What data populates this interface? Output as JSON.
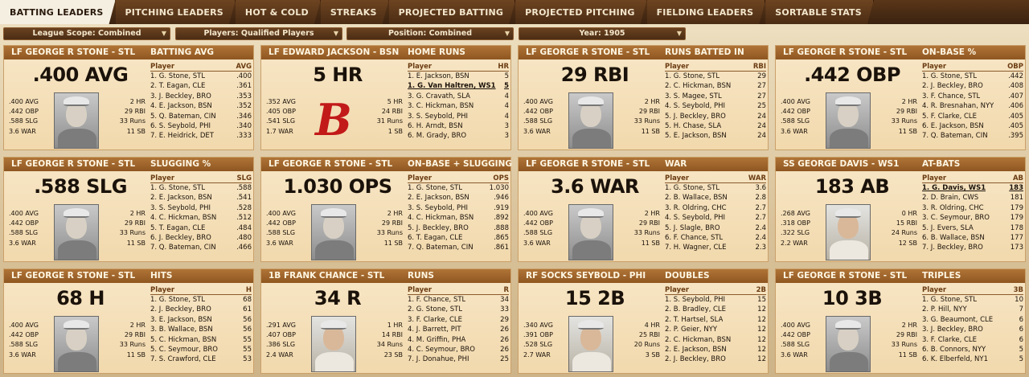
{
  "tabs": [
    {
      "label": "BATTING LEADERS",
      "active": true
    },
    {
      "label": "PITCHING LEADERS",
      "active": false
    },
    {
      "label": "HOT & COLD",
      "active": false
    },
    {
      "label": "STREAKS",
      "active": false
    },
    {
      "label": "PROJECTED BATTING",
      "active": false
    },
    {
      "label": "PROJECTED PITCHING",
      "active": false
    },
    {
      "label": "FIELDING LEADERS",
      "active": false
    },
    {
      "label": "SORTABLE STATS",
      "active": false
    }
  ],
  "filters": {
    "league_scope": "League Scope: Combined",
    "players": "Players: Qualified Players",
    "position": "Position: Combined",
    "year": "Year: 1905"
  },
  "panels": [
    {
      "header_name": "LF GEORGE R STONE - STL",
      "header_stat": "BATTING AVG",
      "big": ".400 AVG",
      "image": "player-photo",
      "left": [
        ".400 AVG",
        ".442 OBP",
        ".588 SLG",
        "3.6 WAR"
      ],
      "right": [
        "2 HR",
        "29 RBI",
        "33 Runs",
        "11 SB"
      ],
      "col_player": "Player",
      "col_stat": "AVG",
      "rows": [
        {
          "name": "1. G. Stone, STL",
          "val": ".400"
        },
        {
          "name": "2. T. Eagan, CLE",
          "val": ".361"
        },
        {
          "name": "3. J. Beckley, BRO",
          "val": ".353"
        },
        {
          "name": "4. E. Jackson, BSN",
          "val": ".352"
        },
        {
          "name": "5. Q. Bateman, CIN",
          "val": ".346"
        },
        {
          "name": "6. S. Seybold, PHI",
          "val": ".340"
        },
        {
          "name": "7. E. Heidrick, DET",
          "val": ".333"
        }
      ]
    },
    {
      "header_name": "LF EDWARD JACKSON - BSN",
      "header_stat": "HOME RUNS",
      "big": "5 HR",
      "image": "team-logo",
      "logo_glyph": "B",
      "left": [
        ".352 AVG",
        ".405 OBP",
        ".541 SLG",
        "1.7 WAR"
      ],
      "right": [
        "5 HR",
        "24 RBI",
        "31 Runs",
        "1 SB"
      ],
      "col_player": "Player",
      "col_stat": "HR",
      "rows": [
        {
          "name": "1. E. Jackson, BSN",
          "val": "5"
        },
        {
          "name": "1. G. Van Haltren, WS1",
          "val": "5",
          "hl": true
        },
        {
          "name": "3. G. Cravath, SLA",
          "val": "4"
        },
        {
          "name": "3. C. Hickman, BSN",
          "val": "4"
        },
        {
          "name": "3. S. Seybold, PHI",
          "val": "4"
        },
        {
          "name": "6. H. Arndt, BSN",
          "val": "3"
        },
        {
          "name": "6. M. Grady, BRO",
          "val": "3"
        }
      ]
    },
    {
      "header_name": "LF GEORGE R STONE - STL",
      "header_stat": "RUNS BATTED IN",
      "big": "29 RBI",
      "image": "player-photo",
      "left": [
        ".400 AVG",
        ".442 OBP",
        ".588 SLG",
        "3.6 WAR"
      ],
      "right": [
        "2 HR",
        "29 RBI",
        "33 Runs",
        "11 SB"
      ],
      "col_player": "Player",
      "col_stat": "RBI",
      "rows": [
        {
          "name": "1. G. Stone, STL",
          "val": "29"
        },
        {
          "name": "2. C. Hickman, BSN",
          "val": "27"
        },
        {
          "name": "3. S. Magee, STL",
          "val": "27"
        },
        {
          "name": "4. S. Seybold, PHI",
          "val": "25"
        },
        {
          "name": "5. J. Beckley, BRO",
          "val": "24"
        },
        {
          "name": "5. H. Chase, SLA",
          "val": "24"
        },
        {
          "name": "5. E. Jackson, BSN",
          "val": "24"
        }
      ]
    },
    {
      "header_name": "LF GEORGE R STONE - STL",
      "header_stat": "ON-BASE %",
      "big": ".442 OBP",
      "image": "player-photo",
      "left": [
        ".400 AVG",
        ".442 OBP",
        ".588 SLG",
        "3.6 WAR"
      ],
      "right": [
        "2 HR",
        "29 RBI",
        "33 Runs",
        "11 SB"
      ],
      "col_player": "Player",
      "col_stat": "OBP",
      "rows": [
        {
          "name": "1. G. Stone, STL",
          "val": ".442"
        },
        {
          "name": "2. J. Beckley, BRO",
          "val": ".408"
        },
        {
          "name": "3. F. Chance, STL",
          "val": ".407"
        },
        {
          "name": "4. R. Bresnahan, NYY",
          "val": ".406"
        },
        {
          "name": "5. F. Clarke, CLE",
          "val": ".405"
        },
        {
          "name": "6. E. Jackson, BSN",
          "val": ".405"
        },
        {
          "name": "7. Q. Bateman, CIN",
          "val": ".395"
        }
      ]
    },
    {
      "header_name": "LF GEORGE R STONE - STL",
      "header_stat": "SLUGGING %",
      "big": ".588 SLG",
      "image": "player-photo",
      "left": [
        ".400 AVG",
        ".442 OBP",
        ".588 SLG",
        "3.6 WAR"
      ],
      "right": [
        "2 HR",
        "29 RBI",
        "33 Runs",
        "11 SB"
      ],
      "col_player": "Player",
      "col_stat": "SLG",
      "rows": [
        {
          "name": "1. G. Stone, STL",
          "val": ".588"
        },
        {
          "name": "2. E. Jackson, BSN",
          "val": ".541"
        },
        {
          "name": "3. S. Seybold, PHI",
          "val": ".528"
        },
        {
          "name": "4. C. Hickman, BSN",
          "val": ".512"
        },
        {
          "name": "5. T. Eagan, CLE",
          "val": ".484"
        },
        {
          "name": "6. J. Beckley, BRO",
          "val": ".480"
        },
        {
          "name": "7. Q. Bateman, CIN",
          "val": ".466"
        }
      ]
    },
    {
      "header_name": "LF GEORGE R STONE - STL",
      "header_stat": "ON-BASE + SLUGGING",
      "big": "1.030 OPS",
      "image": "player-photo",
      "left": [
        ".400 AVG",
        ".442 OBP",
        ".588 SLG",
        "3.6 WAR"
      ],
      "right": [
        "2 HR",
        "29 RBI",
        "33 Runs",
        "11 SB"
      ],
      "col_player": "Player",
      "col_stat": "OPS",
      "rows": [
        {
          "name": "1. G. Stone, STL",
          "val": "1.030"
        },
        {
          "name": "2. E. Jackson, BSN",
          "val": ".946"
        },
        {
          "name": "3. S. Seybold, PHI",
          "val": ".919"
        },
        {
          "name": "4. C. Hickman, BSN",
          "val": ".892"
        },
        {
          "name": "5. J. Beckley, BRO",
          "val": ".888"
        },
        {
          "name": "6. T. Eagan, CLE",
          "val": ".865"
        },
        {
          "name": "7. Q. Bateman, CIN",
          "val": ".861"
        }
      ]
    },
    {
      "header_name": "LF GEORGE R STONE - STL",
      "header_stat": "WAR",
      "big": "3.6 WAR",
      "image": "player-photo",
      "left": [
        ".400 AVG",
        ".442 OBP",
        ".588 SLG",
        "3.6 WAR"
      ],
      "right": [
        "2 HR",
        "29 RBI",
        "33 Runs",
        "11 SB"
      ],
      "col_player": "Player",
      "col_stat": "WAR",
      "rows": [
        {
          "name": "1. G. Stone, STL",
          "val": "3.6"
        },
        {
          "name": "2. B. Wallace, BSN",
          "val": "2.8"
        },
        {
          "name": "3. R. Oldring, CHC",
          "val": "2.7"
        },
        {
          "name": "4. S. Seybold, PHI",
          "val": "2.7"
        },
        {
          "name": "5. J. Slagle, BRO",
          "val": "2.4"
        },
        {
          "name": "6. F. Chance, STL",
          "val": "2.4"
        },
        {
          "name": "7. H. Wagner, CLE",
          "val": "2.3"
        }
      ]
    },
    {
      "header_name": "SS GEORGE DAVIS - WS1",
      "header_stat": "AT-BATS",
      "big": "183 AB",
      "image": "player-photo-color",
      "left": [
        ".268 AVG",
        ".318 OBP",
        ".322 SLG",
        "2.2 WAR"
      ],
      "right": [
        "0 HR",
        "15 RBI",
        "24 Runs",
        "12 SB"
      ],
      "col_player": "Player",
      "col_stat": "AB",
      "rows": [
        {
          "name": "1. G. Davis, WS1",
          "val": "183",
          "hl": true
        },
        {
          "name": "2. D. Brain, CWS",
          "val": "181"
        },
        {
          "name": "3. R. Oldring, CHC",
          "val": "179"
        },
        {
          "name": "3. C. Seymour, BRO",
          "val": "179"
        },
        {
          "name": "5. J. Evers, SLA",
          "val": "178"
        },
        {
          "name": "6. B. Wallace, BSN",
          "val": "177"
        },
        {
          "name": "7. J. Beckley, BRO",
          "val": "173"
        }
      ]
    },
    {
      "header_name": "LF GEORGE R STONE - STL",
      "header_stat": "HITS",
      "big": "68 H",
      "image": "player-photo",
      "left": [
        ".400 AVG",
        ".442 OBP",
        ".588 SLG",
        "3.6 WAR"
      ],
      "right": [
        "2 HR",
        "29 RBI",
        "33 Runs",
        "11 SB"
      ],
      "col_player": "Player",
      "col_stat": "H",
      "rows": [
        {
          "name": "1. G. Stone, STL",
          "val": "68"
        },
        {
          "name": "2. J. Beckley, BRO",
          "val": "61"
        },
        {
          "name": "3. E. Jackson, BSN",
          "val": "56"
        },
        {
          "name": "3. B. Wallace, BSN",
          "val": "56"
        },
        {
          "name": "5. C. Hickman, BSN",
          "val": "55"
        },
        {
          "name": "5. C. Seymour, BRO",
          "val": "55"
        },
        {
          "name": "7. S. Crawford, CLE",
          "val": "53"
        }
      ]
    },
    {
      "header_name": "1B FRANK CHANCE - STL",
      "header_stat": "RUNS",
      "big": "34 R",
      "image": "player-photo-color",
      "left": [
        ".291 AVG",
        ".407 OBP",
        ".386 SLG",
        "2.4 WAR"
      ],
      "right": [
        "1 HR",
        "14 RBI",
        "34 Runs",
        "23 SB"
      ],
      "col_player": "Player",
      "col_stat": "R",
      "rows": [
        {
          "name": "1. F. Chance, STL",
          "val": "34"
        },
        {
          "name": "2. G. Stone, STL",
          "val": "33"
        },
        {
          "name": "3. F. Clarke, CLE",
          "val": "29"
        },
        {
          "name": "4. J. Barrett, PIT",
          "val": "26"
        },
        {
          "name": "4. M. Griffin, PHA",
          "val": "26"
        },
        {
          "name": "4. C. Seymour, BRO",
          "val": "26"
        },
        {
          "name": "7. J. Donahue, PHI",
          "val": "25"
        }
      ]
    },
    {
      "header_name": "RF SOCKS SEYBOLD - PHI",
      "header_stat": "DOUBLES",
      "big": "15 2B",
      "image": "player-photo-color",
      "left": [
        ".340 AVG",
        ".391 OBP",
        ".528 SLG",
        "2.7 WAR"
      ],
      "right": [
        "4 HR",
        "25 RBI",
        "20 Runs",
        "3 SB"
      ],
      "col_player": "Player",
      "col_stat": "2B",
      "rows": [
        {
          "name": "1. S. Seybold, PHI",
          "val": "15"
        },
        {
          "name": "2. B. Bradley, CLE",
          "val": "12"
        },
        {
          "name": "2. T. Hartsel, SLA",
          "val": "12"
        },
        {
          "name": "2. P. Geier, NYY",
          "val": "12"
        },
        {
          "name": "2. C. Hickman, BSN",
          "val": "12"
        },
        {
          "name": "2. E. Jackson, BSN",
          "val": "12"
        },
        {
          "name": "2. J. Beckley, BRO",
          "val": "12"
        }
      ]
    },
    {
      "header_name": "LF GEORGE R STONE - STL",
      "header_stat": "TRIPLES",
      "big": "10 3B",
      "image": "player-photo",
      "left": [
        ".400 AVG",
        ".442 OBP",
        ".588 SLG",
        "3.6 WAR"
      ],
      "right": [
        "2 HR",
        "29 RBI",
        "33 Runs",
        "11 SB"
      ],
      "col_player": "Player",
      "col_stat": "3B",
      "rows": [
        {
          "name": "1. G. Stone, STL",
          "val": "10"
        },
        {
          "name": "2. P. Hill, NYY",
          "val": "7"
        },
        {
          "name": "3. G. Beaumont, CLE",
          "val": "6"
        },
        {
          "name": "3. J. Beckley, BRO",
          "val": "6"
        },
        {
          "name": "3. F. Clarke, CLE",
          "val": "6"
        },
        {
          "name": "6. B. Connors, NYY",
          "val": "5"
        },
        {
          "name": "6. K. Elberfeld, NY1",
          "val": "5"
        }
      ]
    }
  ]
}
